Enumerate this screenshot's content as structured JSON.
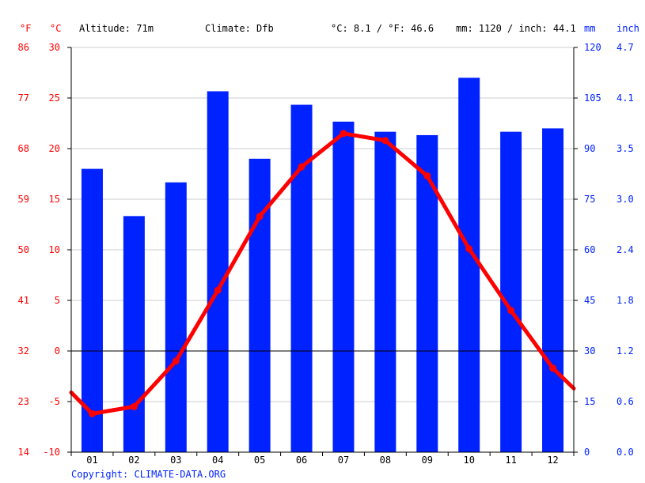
{
  "header": {
    "altitude": "Altitude: 71m",
    "climate": "Climate: Dfb",
    "temp_avg": "°C: 8.1 / °F: 46.6",
    "precip_total": "mm: 1120 / inch: 44.1"
  },
  "units": {
    "f": "°F",
    "c": "°C",
    "mm": "mm",
    "inch": "inch"
  },
  "copyright": "Copyright: CLIMATE-DATA.ORG",
  "colors": {
    "temperature": "#ff0000",
    "precipitation": "#0022ff",
    "grid": "#cccccc",
    "zero_line": "#000000"
  },
  "chart_data": {
    "type": "bar",
    "categories": [
      "01",
      "02",
      "03",
      "04",
      "05",
      "06",
      "07",
      "08",
      "09",
      "10",
      "11",
      "12"
    ],
    "series": [
      {
        "type": "bar",
        "axis": "right",
        "unit": "mm",
        "values": [
          84,
          70,
          80,
          107,
          87,
          103,
          98,
          95,
          94,
          111,
          95,
          96
        ]
      },
      {
        "type": "line",
        "axis": "left",
        "unit": "°C",
        "values": [
          -6.2,
          -5.5,
          -1.0,
          6.0,
          13.3,
          18.2,
          21.5,
          20.8,
          17.3,
          10.1,
          4.0,
          -1.7
        ],
        "edges": [
          -4.1,
          -3.7
        ]
      }
    ],
    "y_left_c": {
      "ticks": [
        "30",
        "25",
        "20",
        "15",
        "10",
        "5",
        "0",
        "-5",
        "-10"
      ],
      "lim": [
        -10,
        30
      ]
    },
    "y_left_f": {
      "ticks": [
        "86",
        "77",
        "68",
        "59",
        "50",
        "41",
        "32",
        "23",
        "14"
      ]
    },
    "y_right_mm": {
      "ticks": [
        "120",
        "105",
        "90",
        "75",
        "60",
        "45",
        "30",
        "15",
        "0"
      ],
      "lim": [
        0,
        120
      ]
    },
    "y_right_inch": {
      "ticks": [
        "4.7",
        "4.1",
        "3.5",
        "3.0",
        "2.4",
        "1.8",
        "1.2",
        "0.6",
        "0.0"
      ]
    },
    "grid": true
  }
}
